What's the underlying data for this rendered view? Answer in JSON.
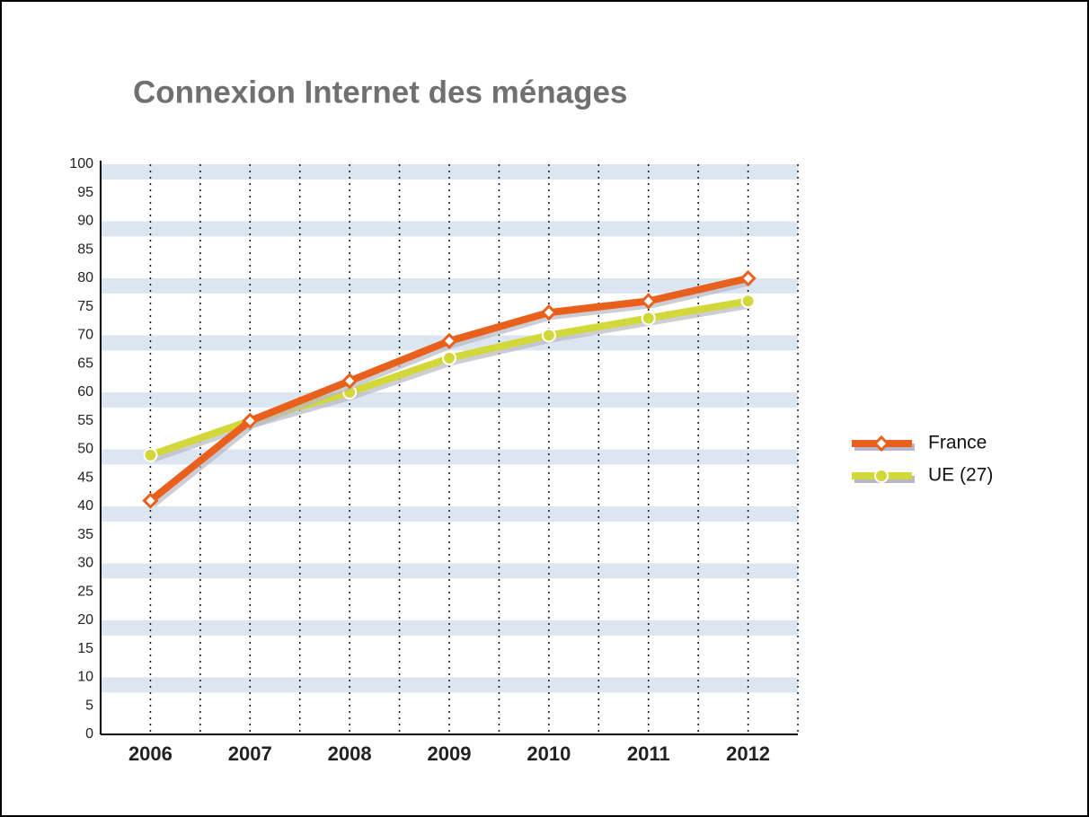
{
  "chart_data": {
    "type": "line",
    "title": "Connexion Internet des ménages",
    "categories": [
      "2006",
      "2007",
      "2008",
      "2009",
      "2010",
      "2011",
      "2012"
    ],
    "series": [
      {
        "name": "France",
        "color": "#e8601c",
        "marker": "diamond",
        "values": [
          41,
          55,
          62,
          69,
          74,
          76,
          80
        ]
      },
      {
        "name": "UE (27)",
        "color": "#d3d83a",
        "marker": "circle",
        "values": [
          49,
          55,
          60,
          66,
          70,
          73,
          76
        ]
      }
    ],
    "ylim": [
      0,
      100
    ],
    "yticks": [
      0,
      5,
      10,
      15,
      20,
      25,
      30,
      35,
      40,
      45,
      50,
      55,
      60,
      65,
      70,
      75,
      80,
      85,
      90,
      95,
      100
    ],
    "grid": true,
    "legend": "right"
  }
}
